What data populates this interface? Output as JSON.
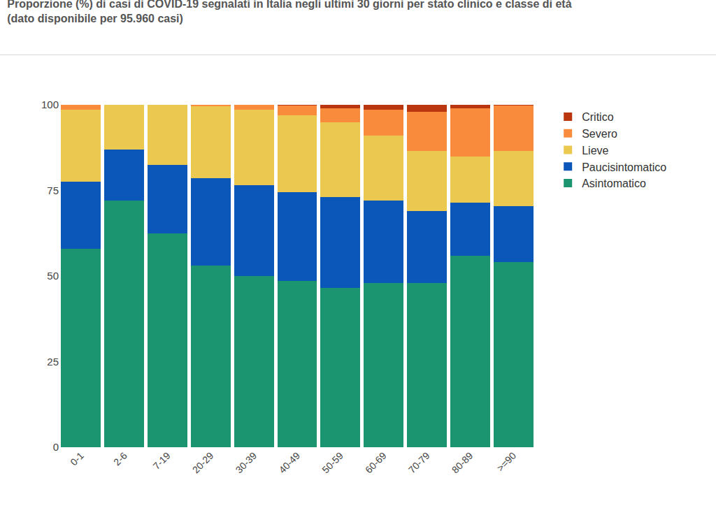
{
  "chart_data": {
    "type": "bar",
    "title": "Proporzione (%) di casi di COVID-19 segnalati in Italia negli ultimi 30 giorni per stato clinico e classe di età",
    "subtitle": "(dato disponibile per 95.960 casi)",
    "categories": [
      "0-1",
      "2-6",
      "7-19",
      "20-29",
      "30-39",
      "40-49",
      "50-59",
      "60-69",
      "70-79",
      "80-89",
      ">=90"
    ],
    "series": [
      {
        "name": "Asintomatico",
        "color": "#1b9470",
        "values": [
          58,
          72,
          62.5,
          53,
          50,
          48.5,
          46.5,
          48,
          48,
          56,
          54
        ]
      },
      {
        "name": "Paucisintomatico",
        "color": "#0b56b9",
        "values": [
          19.5,
          15,
          20,
          25.5,
          26.5,
          26,
          26.5,
          24,
          21,
          15.5,
          16.5
        ]
      },
      {
        "name": "Lieve",
        "color": "#ebc84f",
        "values": [
          21,
          13,
          17.5,
          21,
          22,
          22.5,
          22,
          19,
          17.5,
          13.5,
          16
        ]
      },
      {
        "name": "Severo",
        "color": "#f98b3c",
        "values": [
          1.5,
          0,
          0,
          0.5,
          1.5,
          2.7,
          4,
          7.5,
          11.5,
          14,
          13.2
        ]
      },
      {
        "name": "Critico",
        "color": "#b9360f",
        "values": [
          0,
          0,
          0,
          0,
          0,
          0.3,
          1,
          1.5,
          2,
          1,
          0.3
        ]
      }
    ],
    "stacked": true,
    "ylim": [
      0,
      100
    ],
    "yticks": [
      0,
      25,
      50,
      75,
      100
    ],
    "grid": false,
    "legend": "top right"
  }
}
